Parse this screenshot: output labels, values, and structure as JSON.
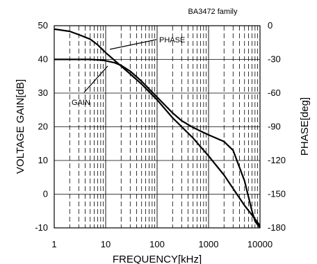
{
  "chart_data": {
    "type": "line",
    "title": "",
    "subtitle": "BA3472 family",
    "xlabel": "FREQUENCY[kHz]",
    "ylabel": "VOLTAGE GAIN[dB]",
    "y2label": "PHASE[deg]",
    "xscale": "log",
    "xlim": [
      1,
      10000
    ],
    "ylim": [
      -10,
      50
    ],
    "y2lim": [
      -180,
      0
    ],
    "grid": true,
    "x_ticks": [
      "1",
      "10",
      "100",
      "1000",
      "10000"
    ],
    "y_ticks": [
      "-10",
      "0",
      "10",
      "20",
      "30",
      "40",
      "50"
    ],
    "y2_ticks": [
      "-180",
      "-150",
      "-120",
      "-90",
      "-60",
      "-30",
      "0"
    ],
    "annotations": [
      {
        "text": "PHASE",
        "target_series": "PHASE"
      },
      {
        "text": "GAIN",
        "target_series": "GAIN"
      }
    ],
    "series": [
      {
        "name": "GAIN",
        "axis": "left",
        "x": [
          1,
          3,
          5,
          8,
          10,
          15,
          20,
          30,
          50,
          80,
          100,
          200,
          300,
          500,
          800,
          1000,
          2000,
          3000,
          5000,
          7000,
          8000,
          10000
        ],
        "y": [
          40,
          40,
          40,
          39.8,
          39.6,
          39,
          38.2,
          36.5,
          33.5,
          30.3,
          28.8,
          24.1,
          21.8,
          19.8,
          18.3,
          17.6,
          15.6,
          13,
          4,
          -5,
          -8,
          -10
        ]
      },
      {
        "name": "PHASE",
        "axis": "right",
        "x": [
          1,
          2,
          3,
          5,
          7,
          10,
          15,
          20,
          30,
          50,
          100,
          200,
          300,
          500,
          1000,
          2000,
          3000,
          5000,
          8000,
          10000
        ],
        "y": [
          -3,
          -5,
          -8,
          -12,
          -17,
          -24,
          -31,
          -36,
          -43,
          -52,
          -66,
          -82,
          -90,
          -100,
          -116,
          -133,
          -145,
          -160,
          -172,
          -178
        ]
      }
    ]
  }
}
